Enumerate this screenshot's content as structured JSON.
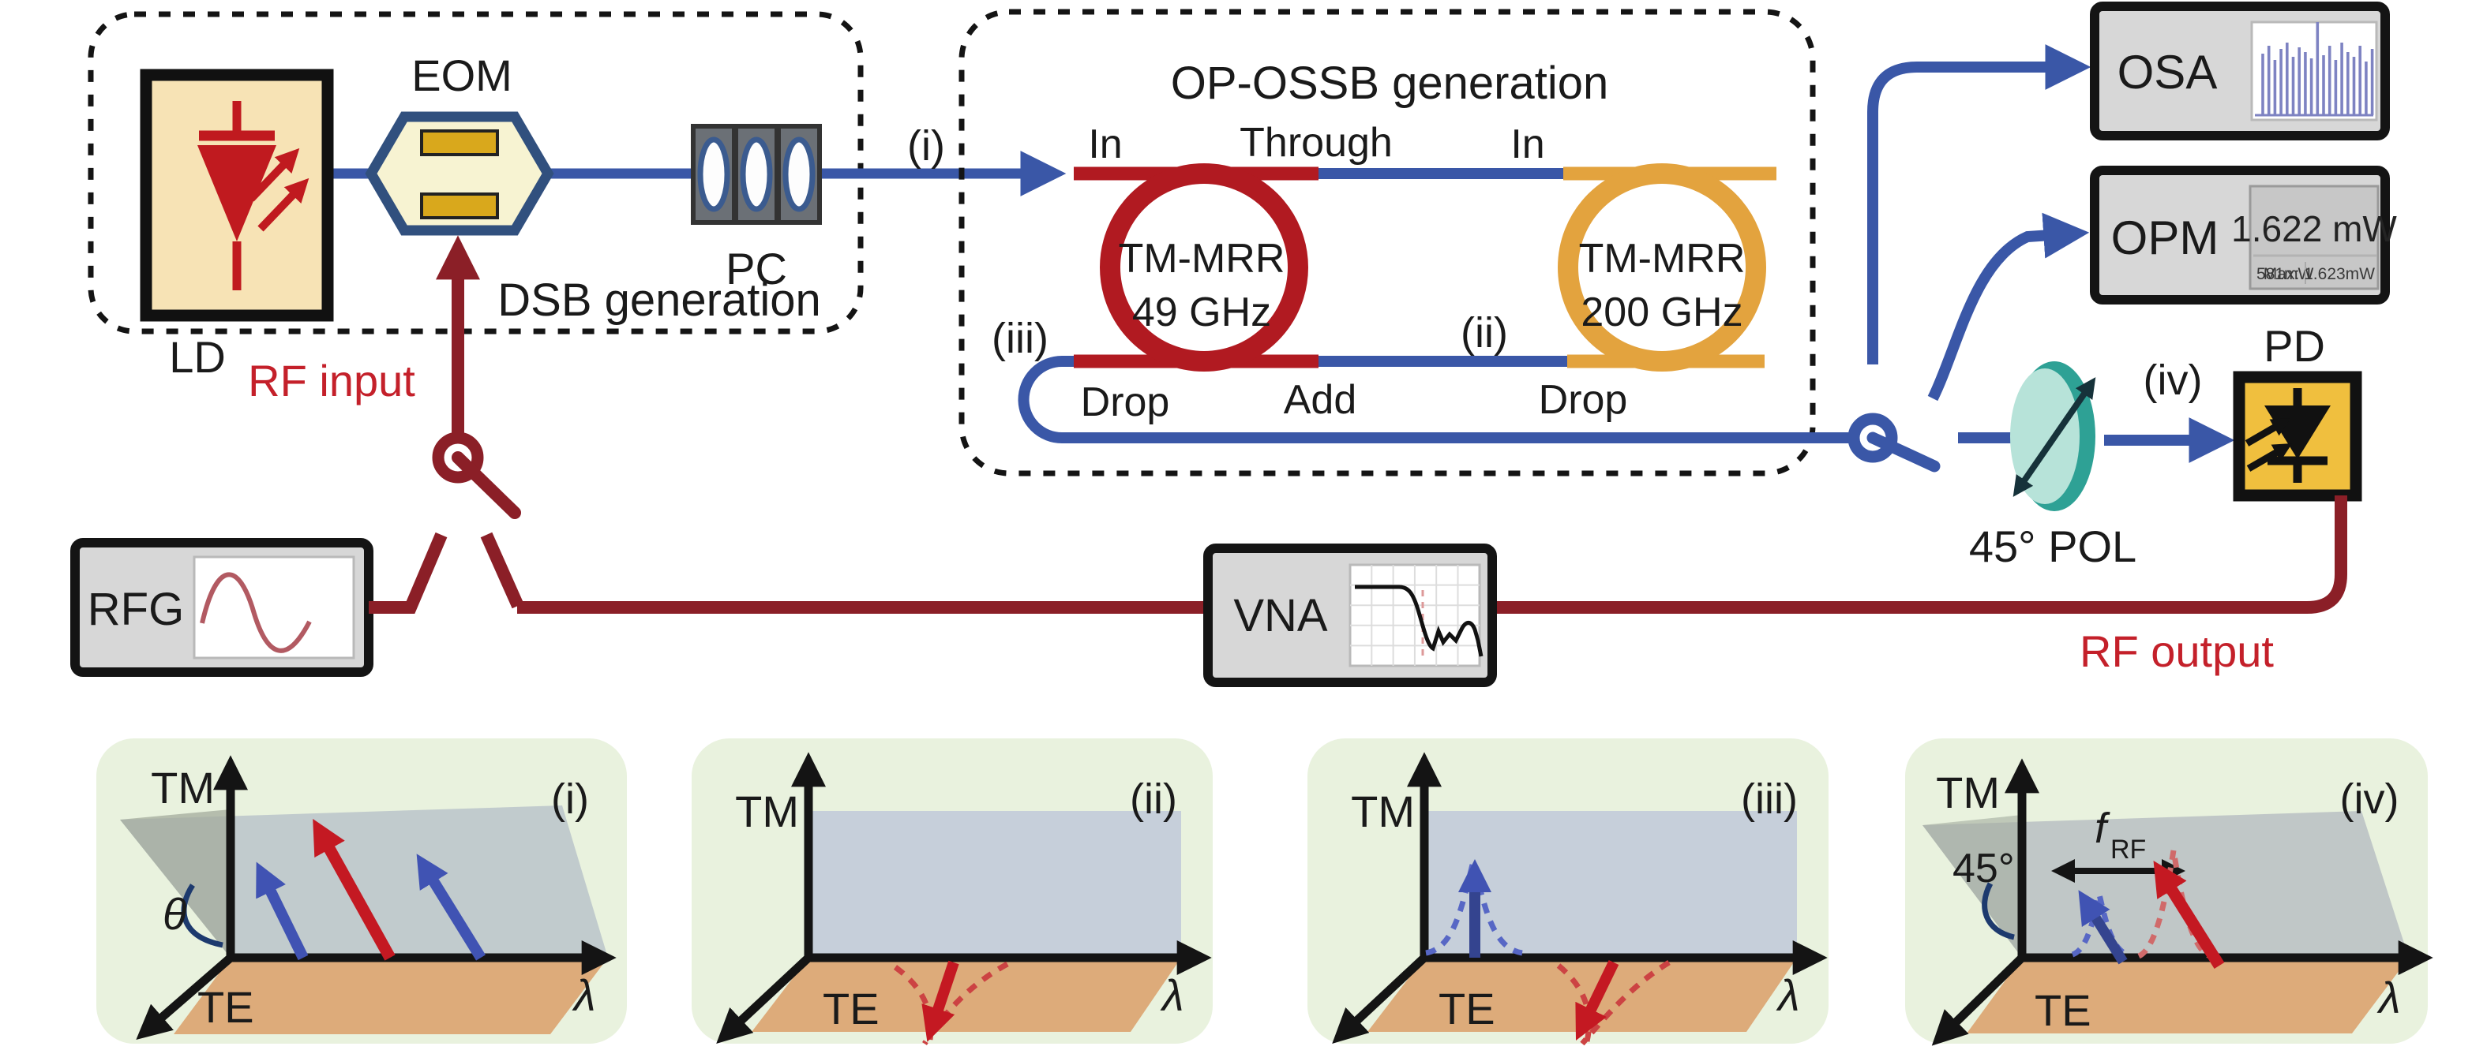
{
  "dsb_box": {
    "title": "DSB generation"
  },
  "op_ossb_box": {
    "title": "OP-OSSB generation"
  },
  "components": {
    "ld": "LD",
    "eom": "EOM",
    "pc": "PC",
    "rfg": "RFG",
    "vna": "VNA",
    "osa": "OSA",
    "opm": "OPM",
    "pd": "PD",
    "pol": "45° POL"
  },
  "opm_display": {
    "main": "1.622 mW",
    "sub_left": "581mW",
    "sub_right": "Max: 1.623mW"
  },
  "rings": [
    {
      "line1": "TM-MRR",
      "line2": "49 GHz"
    },
    {
      "line1": "TM-MRR",
      "line2": "200 GHz"
    }
  ],
  "ports": {
    "in1": "In",
    "through": "Through",
    "in2": "In",
    "drop1": "Drop",
    "add": "Add",
    "drop2": "Drop"
  },
  "stages": {
    "i": "(i)",
    "ii": "(ii)",
    "iii": "(iii)",
    "iv": "(iv)"
  },
  "rf": {
    "input": "RF input",
    "output": "RF output"
  },
  "panels": [
    {
      "id": "(i)",
      "tm": "TM",
      "te": "TE",
      "lambda": "λ",
      "theta": "θ"
    },
    {
      "id": "(ii)",
      "tm": "TM",
      "te": "TE",
      "lambda": "λ"
    },
    {
      "id": "(iii)",
      "tm": "TM",
      "te": "TE",
      "lambda": "λ"
    },
    {
      "id": "(iv)",
      "tm": "TM",
      "te": "TE",
      "lambda": "λ",
      "angle": "45°",
      "f": "f",
      "f_sub": "RF"
    }
  ],
  "colors": {
    "optical": "#3a57a7",
    "rf_line": "#8b1f27",
    "rf_text": "#c4202a",
    "ring_49": "#b11a21",
    "ring_200": "#e3a33e",
    "panel_bg": "#e9f2de"
  }
}
